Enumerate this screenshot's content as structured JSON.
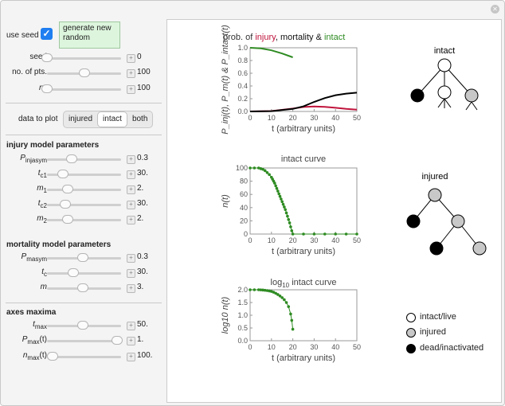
{
  "controls": {
    "use_seed": {
      "label": "use seed",
      "checked": true
    },
    "generate_button": {
      "label": "generate new random"
    },
    "seed": {
      "label": "seed",
      "value": "0",
      "fraction": 0.0
    },
    "num_pts": {
      "label": "no. of pts.",
      "value": "100",
      "fraction": 0.5
    },
    "n0": {
      "label_base": "n",
      "label_sub": "0",
      "value": "100",
      "fraction": 0.0
    },
    "data_to_plot": {
      "label": "data to plot",
      "options": [
        "injured",
        "intact",
        "both"
      ],
      "selected": "intact"
    }
  },
  "injury_section": {
    "title": "injury model parameters",
    "params": [
      {
        "base": "P",
        "sub": "injasym",
        "value": "0.3",
        "fraction": 0.33
      },
      {
        "base": "t",
        "sub": "c1",
        "value": "30.",
        "fraction": 0.22
      },
      {
        "base": "m",
        "sub": "1",
        "value": "2.",
        "fraction": 0.28
      },
      {
        "base": "t",
        "sub": "c2",
        "value": "30.",
        "fraction": 0.25
      },
      {
        "base": "m",
        "sub": "2",
        "value": "2.",
        "fraction": 0.28
      }
    ]
  },
  "mortality_section": {
    "title": "mortality model parameters",
    "params": [
      {
        "base": "P",
        "sub": "masym",
        "value": "0.3",
        "fraction": 0.48
      },
      {
        "base": "t",
        "sub": "c",
        "value": "30.",
        "fraction": 0.35
      },
      {
        "base": "m",
        "sub": "",
        "value": "3.",
        "fraction": 0.48
      }
    ]
  },
  "axes_section": {
    "title": "axes maxima",
    "params": [
      {
        "base": "t",
        "sub": "max",
        "value": "50.",
        "fraction": 0.48
      },
      {
        "base": "P",
        "sub": "max",
        "suffix": "(t)",
        "value": "1.",
        "fraction": 0.95
      },
      {
        "base": "n",
        "sub": "max",
        "suffix": "(t)",
        "value": "100.",
        "fraction": 0.08
      }
    ]
  },
  "chart_data": [
    {
      "type": "line",
      "title_parts": [
        {
          "text": "prob. of ",
          "color": "#333333"
        },
        {
          "text": "injury",
          "color": "#c0143c"
        },
        {
          "text": ", mortality & ",
          "color": "#111111"
        },
        {
          "text": "intact",
          "color": "#2e8b22"
        }
      ],
      "ylabel": "P_inj(t), P_m(t) & P_intact(t)",
      "xlabel": "t (arbitrary units)",
      "xlim": [
        0,
        50
      ],
      "ylim": [
        0,
        1.0
      ],
      "xticks": [
        0,
        10,
        20,
        30,
        40,
        50
      ],
      "yticks": [
        0.0,
        0.2,
        0.4,
        0.6,
        0.8,
        1.0
      ],
      "series": [
        {
          "color": "#2e8b22",
          "x": [
            0,
            5,
            10,
            15,
            20
          ],
          "y": [
            1.0,
            0.99,
            0.96,
            0.91,
            0.85
          ]
        },
        {
          "color": "#c0143c",
          "x": [
            0,
            10,
            20,
            25,
            30,
            35,
            40,
            45,
            50
          ],
          "y": [
            0,
            0.006,
            0.045,
            0.07,
            0.078,
            0.072,
            0.057,
            0.04,
            0.027
          ]
        },
        {
          "color": "#000000",
          "x": [
            0,
            10,
            20,
            25,
            30,
            35,
            40,
            45,
            50
          ],
          "y": [
            0,
            0.005,
            0.04,
            0.08,
            0.15,
            0.21,
            0.255,
            0.28,
            0.295
          ]
        }
      ]
    },
    {
      "type": "scatter",
      "title": "intact curve",
      "ylabel": "n(t)",
      "xlabel": "t (arbitrary units)",
      "xlim": [
        0,
        50
      ],
      "ylim": [
        0,
        100
      ],
      "xticks": [
        0,
        10,
        20,
        30,
        40,
        50
      ],
      "yticks": [
        0,
        20,
        40,
        60,
        80,
        100
      ],
      "series": [
        {
          "color": "#2e8b22",
          "x": [
            0,
            2,
            4,
            5,
            6,
            7,
            8,
            9,
            10,
            10.5,
            11,
            11.5,
            12,
            12.5,
            13,
            13.5,
            14,
            14.5,
            15,
            15.5,
            16,
            16.5,
            17,
            17.5,
            18,
            18.5,
            19,
            19.5,
            20,
            25,
            30,
            35,
            40,
            45,
            50
          ],
          "y": [
            100,
            100,
            100,
            99,
            98,
            96,
            93,
            90,
            86,
            83,
            80,
            77,
            73,
            69,
            65,
            61,
            57,
            53,
            49,
            45,
            41,
            37,
            32,
            27,
            22,
            17,
            11,
            5,
            0,
            0,
            0,
            0,
            0,
            0,
            0
          ]
        }
      ]
    },
    {
      "type": "scatter",
      "title_base": "log",
      "title_sub": "10",
      "title_rest": " intact curve",
      "ylabel": "log10 n(t)",
      "xlabel": "t (arbitrary units)",
      "xlim": [
        0,
        50
      ],
      "ylim": [
        0,
        2.0
      ],
      "xticks": [
        0,
        10,
        20,
        30,
        40,
        50
      ],
      "yticks": [
        0.0,
        0.5,
        1.0,
        1.5,
        2.0
      ],
      "series": [
        {
          "color": "#2e8b22",
          "x": [
            0,
            2,
            4,
            5,
            6,
            7,
            8,
            9,
            10,
            11,
            12,
            13,
            14,
            15,
            16,
            17,
            18,
            19,
            19.5,
            20
          ],
          "y": [
            2.0,
            2.0,
            2.0,
            1.996,
            1.99,
            1.98,
            1.968,
            1.954,
            1.934,
            1.903,
            1.863,
            1.813,
            1.756,
            1.69,
            1.61,
            1.5,
            1.34,
            1.05,
            0.8,
            0.45
          ]
        }
      ]
    }
  ],
  "diagrams": {
    "intact": {
      "title": "intact"
    },
    "injured": {
      "title": "injured"
    }
  },
  "legend": [
    {
      "label": "intact/live",
      "fill": "#ffffff"
    },
    {
      "label": "injured",
      "fill": "#c8c8c8"
    },
    {
      "label": "dead/inactivated",
      "fill": "#000000"
    }
  ]
}
